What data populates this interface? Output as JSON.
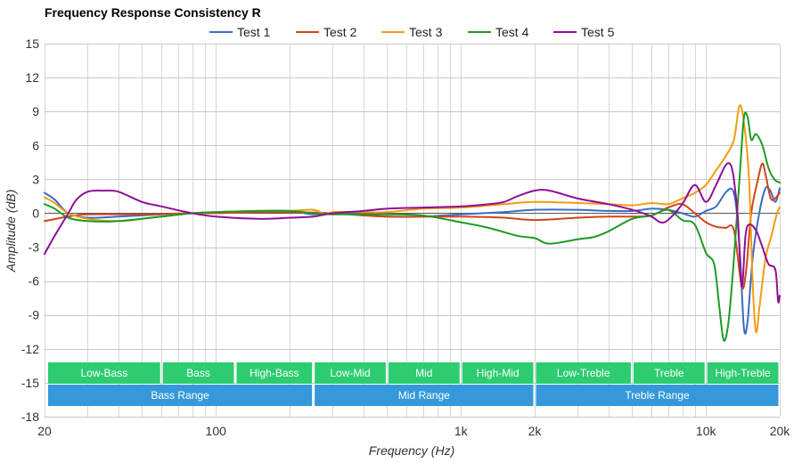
{
  "chart_data": {
    "type": "line",
    "title": "Frequency Response Consistency R",
    "xlabel": "Frequency (Hz)",
    "ylabel": "Amplitude (dB)",
    "x_scale": "log",
    "xlim": [
      20,
      20000
    ],
    "ylim": [
      -18,
      15
    ],
    "x_ticks": [
      {
        "value": 20,
        "label": "20"
      },
      {
        "value": 100,
        "label": "100"
      },
      {
        "value": 1000,
        "label": "1k"
      },
      {
        "value": 2000,
        "label": "2k"
      },
      {
        "value": 10000,
        "label": "10k"
      },
      {
        "value": 20000,
        "label": "20k"
      }
    ],
    "y_ticks": [
      {
        "value": 15,
        "label": "15"
      },
      {
        "value": 12,
        "label": "12"
      },
      {
        "value": 9,
        "label": "9"
      },
      {
        "value": 6,
        "label": "6"
      },
      {
        "value": 3,
        "label": "3"
      },
      {
        "value": 0,
        "label": "0"
      },
      {
        "value": -3,
        "label": "-3"
      },
      {
        "value": -6,
        "label": "-6"
      },
      {
        "value": -9,
        "label": "-9"
      },
      {
        "value": -12,
        "label": "-12"
      },
      {
        "value": -15,
        "label": "-15"
      },
      {
        "value": -18,
        "label": "-18"
      }
    ],
    "grid": true,
    "legend_position": "top",
    "bands": {
      "color": "#2ecc71",
      "items": [
        {
          "label": "Low-Bass",
          "from": 20,
          "to": 60
        },
        {
          "label": "Bass",
          "from": 60,
          "to": 120
        },
        {
          "label": "High-Bass",
          "from": 120,
          "to": 250
        },
        {
          "label": "Low-Mid",
          "from": 250,
          "to": 500
        },
        {
          "label": "Mid",
          "from": 500,
          "to": 1000
        },
        {
          "label": "High-Mid",
          "from": 1000,
          "to": 2000
        },
        {
          "label": "Low-Treble",
          "from": 2000,
          "to": 5000
        },
        {
          "label": "Treble",
          "from": 5000,
          "to": 10000
        },
        {
          "label": "High-Treble",
          "from": 10000,
          "to": 20000
        }
      ]
    },
    "ranges": {
      "color": "#3498db",
      "items": [
        {
          "label": "Bass Range",
          "from": 20,
          "to": 250
        },
        {
          "label": "Mid Range",
          "from": 250,
          "to": 2000
        },
        {
          "label": "Treble Range",
          "from": 2000,
          "to": 20000
        }
      ]
    },
    "series": [
      {
        "name": "Test 1",
        "color": "#3a6cc4",
        "points": [
          [
            20,
            1.8
          ],
          [
            22,
            1.2
          ],
          [
            25,
            0
          ],
          [
            30,
            -0.4
          ],
          [
            40,
            -0.3
          ],
          [
            60,
            -0.1
          ],
          [
            80,
            0
          ],
          [
            100,
            0.1
          ],
          [
            150,
            0.2
          ],
          [
            200,
            0.2
          ],
          [
            250,
            -0.1
          ],
          [
            300,
            0
          ],
          [
            400,
            -0.1
          ],
          [
            500,
            -0.3
          ],
          [
            700,
            -0.3
          ],
          [
            1000,
            -0.1
          ],
          [
            1500,
            0.1
          ],
          [
            2000,
            0.3
          ],
          [
            3000,
            0.3
          ],
          [
            4000,
            0.2
          ],
          [
            5000,
            0.2
          ],
          [
            6000,
            0.4
          ],
          [
            7000,
            0.3
          ],
          [
            8000,
            0
          ],
          [
            9000,
            -0.3
          ],
          [
            10000,
            0.2
          ],
          [
            11000,
            0.6
          ],
          [
            12000,
            1.8
          ],
          [
            12800,
            2.1
          ],
          [
            13300,
            0.5
          ],
          [
            13800,
            -4
          ],
          [
            14300,
            -10.2
          ],
          [
            14800,
            -9.5
          ],
          [
            15500,
            -4
          ],
          [
            16500,
            0
          ],
          [
            17500,
            2.2
          ],
          [
            18300,
            2
          ],
          [
            19200,
            1
          ],
          [
            20000,
            2.2
          ]
        ]
      },
      {
        "name": "Test 2",
        "color": "#d0451b",
        "points": [
          [
            20,
            -0.7
          ],
          [
            25,
            -0.3
          ],
          [
            30,
            -0.1
          ],
          [
            50,
            -0.1
          ],
          [
            80,
            0
          ],
          [
            100,
            0
          ],
          [
            150,
            0.1
          ],
          [
            200,
            0.1
          ],
          [
            300,
            0
          ],
          [
            400,
            -0.2
          ],
          [
            500,
            -0.3
          ],
          [
            700,
            -0.3
          ],
          [
            1000,
            -0.3
          ],
          [
            1500,
            -0.4
          ],
          [
            2000,
            -0.6
          ],
          [
            3000,
            -0.4
          ],
          [
            4000,
            -0.3
          ],
          [
            5000,
            -0.3
          ],
          [
            6000,
            -0.2
          ],
          [
            7000,
            0.5
          ],
          [
            8000,
            0.8
          ],
          [
            9000,
            0
          ],
          [
            10000,
            -0.8
          ],
          [
            11000,
            -1.2
          ],
          [
            12000,
            -1.3
          ],
          [
            13000,
            -1.5
          ],
          [
            14000,
            -6.5
          ],
          [
            14600,
            -5
          ],
          [
            15300,
            0
          ],
          [
            16300,
            3
          ],
          [
            17000,
            4.4
          ],
          [
            17600,
            3.2
          ],
          [
            18500,
            1.2
          ],
          [
            20000,
            1.8
          ]
        ]
      },
      {
        "name": "Test 3",
        "color": "#f39c12",
        "points": [
          [
            20,
            1.4
          ],
          [
            22,
            0.9
          ],
          [
            25,
            0
          ],
          [
            30,
            -0.5
          ],
          [
            40,
            -0.7
          ],
          [
            50,
            -0.5
          ],
          [
            60,
            -0.3
          ],
          [
            80,
            0
          ],
          [
            100,
            0.1
          ],
          [
            150,
            0.2
          ],
          [
            200,
            0.2
          ],
          [
            250,
            0.3
          ],
          [
            280,
            -0.1
          ],
          [
            300,
            0.1
          ],
          [
            400,
            0.1
          ],
          [
            500,
            0.1
          ],
          [
            700,
            0.4
          ],
          [
            1000,
            0.5
          ],
          [
            1500,
            0.8
          ],
          [
            2000,
            1
          ],
          [
            3000,
            0.9
          ],
          [
            4000,
            0.8
          ],
          [
            5000,
            0.7
          ],
          [
            6000,
            0.9
          ],
          [
            7000,
            0.8
          ],
          [
            8000,
            1.3
          ],
          [
            9000,
            1.8
          ],
          [
            10000,
            2.5
          ],
          [
            11000,
            3.8
          ],
          [
            12000,
            5
          ],
          [
            13000,
            6.5
          ],
          [
            13700,
            9.5
          ],
          [
            14300,
            8
          ],
          [
            15000,
            3
          ],
          [
            15500,
            -6
          ],
          [
            16000,
            -10.5
          ],
          [
            16600,
            -8
          ],
          [
            17500,
            -4
          ],
          [
            18500,
            -2
          ],
          [
            19500,
            0
          ],
          [
            20000,
            0.5
          ]
        ]
      },
      {
        "name": "Test 4",
        "color": "#1f9a24",
        "points": [
          [
            20,
            0.8
          ],
          [
            22,
            0.4
          ],
          [
            25,
            -0.4
          ],
          [
            30,
            -0.7
          ],
          [
            40,
            -0.7
          ],
          [
            60,
            -0.3
          ],
          [
            80,
            0
          ],
          [
            100,
            0.1
          ],
          [
            150,
            0.2
          ],
          [
            200,
            0.2
          ],
          [
            250,
            0
          ],
          [
            300,
            -0.1
          ],
          [
            400,
            -0.1
          ],
          [
            500,
            -0.1
          ],
          [
            700,
            -0.2
          ],
          [
            1000,
            -0.8
          ],
          [
            1300,
            -1.3
          ],
          [
            1700,
            -2
          ],
          [
            2000,
            -2.2
          ],
          [
            2300,
            -2.7
          ],
          [
            3000,
            -2.3
          ],
          [
            3500,
            -2.1
          ],
          [
            4000,
            -1.6
          ],
          [
            5000,
            -0.5
          ],
          [
            6000,
            -0.2
          ],
          [
            7000,
            0.3
          ],
          [
            8000,
            -0.6
          ],
          [
            9000,
            -1
          ],
          [
            10000,
            -3.5
          ],
          [
            10800,
            -4.5
          ],
          [
            11300,
            -8
          ],
          [
            11800,
            -11.2
          ],
          [
            12300,
            -10
          ],
          [
            12800,
            -6
          ],
          [
            13300,
            -1
          ],
          [
            13800,
            4
          ],
          [
            14300,
            8.5
          ],
          [
            14800,
            8.5
          ],
          [
            15300,
            6.5
          ],
          [
            16000,
            7
          ],
          [
            17000,
            6
          ],
          [
            18000,
            4
          ],
          [
            19000,
            3
          ],
          [
            20000,
            2.7
          ]
        ]
      },
      {
        "name": "Test 5",
        "color": "#8e0f96",
        "points": [
          [
            20,
            -3.6
          ],
          [
            22,
            -2
          ],
          [
            25,
            0
          ],
          [
            27,
            1.2
          ],
          [
            30,
            1.9
          ],
          [
            35,
            2
          ],
          [
            40,
            1.9
          ],
          [
            50,
            1
          ],
          [
            60,
            0.6
          ],
          [
            80,
            0
          ],
          [
            100,
            -0.3
          ],
          [
            150,
            -0.5
          ],
          [
            200,
            -0.4
          ],
          [
            250,
            -0.3
          ],
          [
            300,
            0
          ],
          [
            400,
            0.2
          ],
          [
            500,
            0.4
          ],
          [
            700,
            0.5
          ],
          [
            1000,
            0.6
          ],
          [
            1300,
            0.8
          ],
          [
            1500,
            1
          ],
          [
            1700,
            1.5
          ],
          [
            2000,
            2
          ],
          [
            2300,
            2
          ],
          [
            3000,
            1.3
          ],
          [
            4000,
            0.8
          ],
          [
            5000,
            0.3
          ],
          [
            6000,
            -0.3
          ],
          [
            6500,
            -0.8
          ],
          [
            7000,
            -0.6
          ],
          [
            8000,
            0.8
          ],
          [
            9000,
            2.5
          ],
          [
            10000,
            1
          ],
          [
            11000,
            2.5
          ],
          [
            12000,
            4.2
          ],
          [
            12600,
            4.3
          ],
          [
            13000,
            3
          ],
          [
            13500,
            -0.5
          ],
          [
            14000,
            -6.5
          ],
          [
            14500,
            -2
          ],
          [
            15000,
            -1
          ],
          [
            16000,
            -1.5
          ],
          [
            17000,
            -3
          ],
          [
            18000,
            -4.5
          ],
          [
            19200,
            -5
          ],
          [
            19700,
            -7.8
          ],
          [
            20000,
            -7.3
          ]
        ]
      }
    ]
  }
}
